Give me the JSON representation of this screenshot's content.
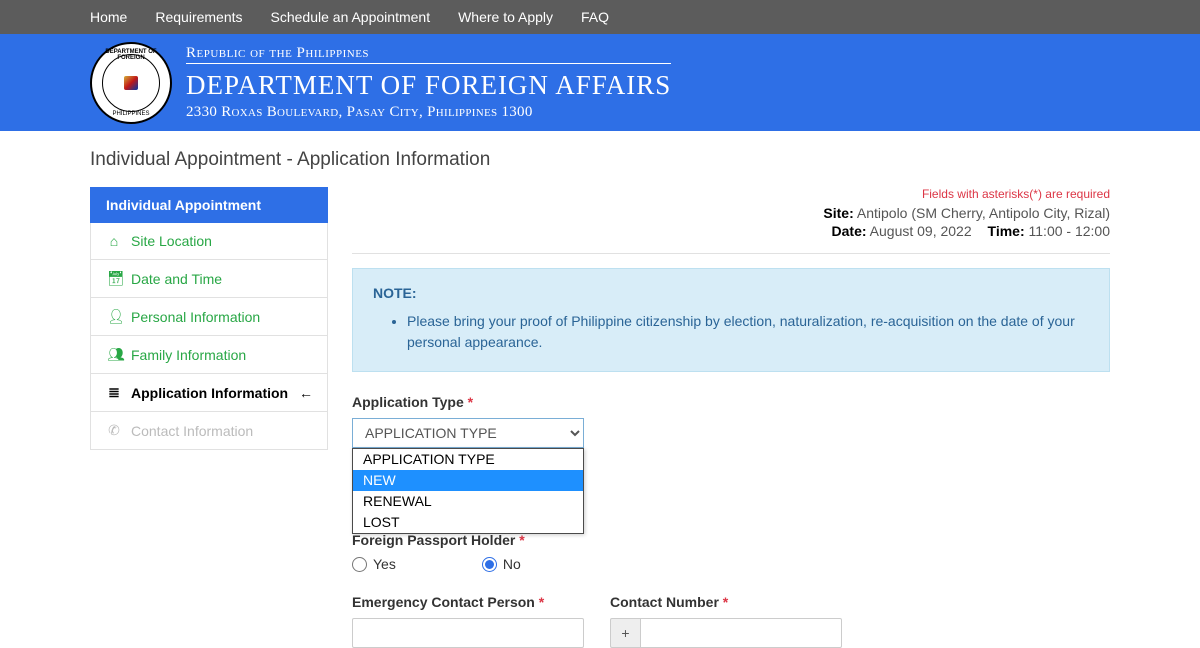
{
  "nav": {
    "home": "Home",
    "requirements": "Requirements",
    "schedule": "Schedule an Appointment",
    "where": "Where to Apply",
    "faq": "FAQ"
  },
  "header": {
    "line1": "Republic of the Philippines",
    "line2": "DEPARTMENT OF FOREIGN AFFAIRS",
    "line3": "2330 Roxas Boulevard, Pasay City, Philippines 1300",
    "seal_top": "DEPARTMENT OF FOREIGN",
    "seal_bottom": "PHILIPPINES"
  },
  "page": {
    "title_a": "Individual Appointment",
    "title_b": "Application Information"
  },
  "sidebar": {
    "header": "Individual Appointment",
    "site_location": "Site Location",
    "date_time": "Date and Time",
    "personal": "Personal Information",
    "family": "Family Information",
    "application": "Application Information",
    "contact": "Contact Information"
  },
  "info": {
    "required_note": "Fields with asterisks(*) are required",
    "site_label": "Site:",
    "site_value": "Antipolo (SM Cherry, Antipolo City, Rizal)",
    "date_label": "Date:",
    "date_value": "August 09, 2022",
    "time_label": "Time:",
    "time_value": "11:00 - 12:00"
  },
  "note": {
    "title": "NOTE:",
    "item1": "Please bring your proof of Philippine citizenship by election, naturalization, re-acquisition on the date of your personal appearance."
  },
  "form": {
    "app_type_label": "Application Type",
    "app_type_selected": "APPLICATION TYPE",
    "options": {
      "placeholder": "APPLICATION TYPE",
      "new": "NEW",
      "renewal": "RENEWAL",
      "lost": "LOST"
    },
    "foreign_label": "Foreign Passport Holder",
    "yes": "Yes",
    "no": "No",
    "emergency_label": "Emergency Contact Person",
    "contact_num_label": "Contact Number",
    "addon": "+"
  }
}
